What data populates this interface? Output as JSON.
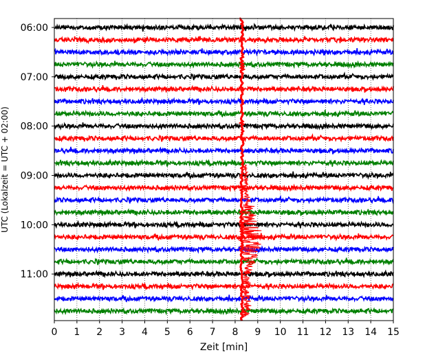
{
  "chart_data": {
    "type": "line",
    "title": "",
    "xlabel": "Zeit  [min]",
    "ylabel": "UTC (Lokalzeit = UTC + 02:00)",
    "xlim": [
      0,
      15
    ],
    "x_ticks": [
      "0",
      "1",
      "2",
      "3",
      "4",
      "5",
      "6",
      "7",
      "8",
      "9",
      "10",
      "11",
      "12",
      "13",
      "14",
      "15"
    ],
    "y_tick_labels": [
      "06:00",
      "07:00",
      "08:00",
      "09:00",
      "10:00",
      "11:00"
    ],
    "grid": "vertical dotted lines at each minute",
    "trace_start_times": [
      "06:00",
      "06:15",
      "06:30",
      "06:45",
      "07:00",
      "07:15",
      "07:30",
      "07:45",
      "08:00",
      "08:15",
      "08:30",
      "08:45",
      "09:00",
      "09:15",
      "09:30",
      "09:45",
      "10:00",
      "10:15",
      "10:30",
      "10:45",
      "11:00",
      "11:15",
      "11:30",
      "11:45"
    ],
    "color_cycle": [
      "#000000",
      "#ff0000",
      "#0000ff",
      "#008000"
    ],
    "event": {
      "onset_min": 8.3,
      "trace_color": "#ff0000",
      "note": "large seismic event saturating traces from ~09:30 to ~11:45 around minute 8.3"
    }
  }
}
